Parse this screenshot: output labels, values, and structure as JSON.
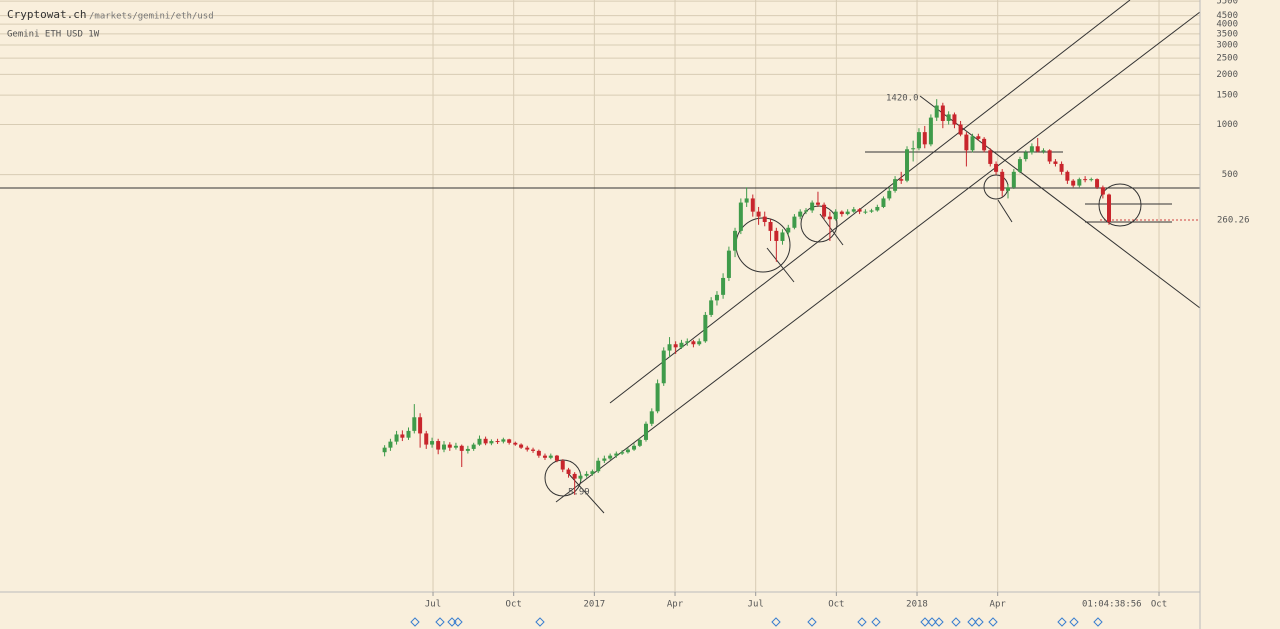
{
  "header": {
    "site": "Cryptowat.ch",
    "path": "/markets/gemini/eth/usd",
    "market": "Gemini ETH USD 1W"
  },
  "chart_data": {
    "type": "candlestick",
    "log_y": true,
    "grid": true,
    "up_color": "#3f9b4a",
    "down_color": "#c8252c",
    "xlim": [
      2015.158,
      2018.877
    ],
    "ylim": [
      1.565,
      5586
    ],
    "xticks": [
      {
        "value": 2016.5,
        "label": "Jul"
      },
      {
        "value": 2016.75,
        "label": "Oct"
      },
      {
        "value": 2017.0,
        "label": "2017"
      },
      {
        "value": 2017.25,
        "label": "Apr"
      },
      {
        "value": 2017.5,
        "label": "Jul"
      },
      {
        "value": 2017.75,
        "label": "Oct"
      },
      {
        "value": 2018.0,
        "label": "2018"
      },
      {
        "value": 2018.25,
        "label": "Apr"
      },
      {
        "value": 2018.75,
        "label": "Oct"
      }
    ],
    "yticks": [
      500,
      1000,
      1500,
      2000,
      2500,
      3000,
      3500,
      4000,
      4500,
      5500
    ],
    "countdown": "01:04:38:56",
    "annotations": [
      {
        "text": "1420.0"
      },
      {
        "text": "5.99"
      }
    ],
    "x": [
      2016.35,
      2016.368,
      2016.387,
      2016.405,
      2016.424,
      2016.442,
      2016.46,
      2016.479,
      2016.497,
      2016.516,
      2016.534,
      2016.552,
      2016.571,
      2016.589,
      2016.608,
      2016.626,
      2016.644,
      2016.663,
      2016.681,
      2016.7,
      2016.718,
      2016.736,
      2016.755,
      2016.773,
      2016.792,
      2016.81,
      2016.828,
      2016.847,
      2016.865,
      2016.884,
      2016.902,
      2016.92,
      2016.939,
      2016.957,
      2016.976,
      2016.994,
      2017.012,
      2017.031,
      2017.049,
      2017.068,
      2017.086,
      2017.104,
      2017.123,
      2017.141,
      2017.16,
      2017.178,
      2017.196,
      2017.215,
      2017.233,
      2017.252,
      2017.27,
      2017.288,
      2017.307,
      2017.325,
      2017.344,
      2017.362,
      2017.38,
      2017.399,
      2017.417,
      2017.436,
      2017.454,
      2017.472,
      2017.491,
      2017.509,
      2017.528,
      2017.546,
      2017.564,
      2017.583,
      2017.601,
      2017.62,
      2017.638,
      2017.656,
      2017.675,
      2017.693,
      2017.712,
      2017.73,
      2017.748,
      2017.767,
      2017.785,
      2017.804,
      2017.822,
      2017.84,
      2017.859,
      2017.877,
      2017.896,
      2017.914,
      2017.932,
      2017.951,
      2017.969,
      2017.988,
      2018.006,
      2018.024,
      2018.043,
      2018.061,
      2018.08,
      2018.098,
      2018.116,
      2018.135,
      2018.153,
      2018.172,
      2018.19,
      2018.208,
      2018.227,
      2018.245,
      2018.264,
      2018.282,
      2018.3,
      2018.319,
      2018.337,
      2018.356,
      2018.374,
      2018.392,
      2018.411,
      2018.429,
      2018.448,
      2018.466,
      2018.484,
      2018.503,
      2018.521,
      2018.54,
      2018.558,
      2018.576,
      2018.595
    ],
    "candles": [
      [
        10.8,
        11.9,
        10.2,
        11.5
      ],
      [
        11.5,
        13.0,
        11.0,
        12.5
      ],
      [
        12.5,
        14.5,
        12.0,
        13.8
      ],
      [
        13.8,
        14.6,
        12.6,
        13.2
      ],
      [
        13.2,
        15.2,
        12.8,
        14.5
      ],
      [
        14.5,
        21.0,
        14.0,
        17.5
      ],
      [
        17.5,
        18.5,
        11.5,
        14.0
      ],
      [
        14.0,
        14.5,
        11.3,
        12.0
      ],
      [
        12.0,
        13.2,
        11.5,
        12.6
      ],
      [
        12.6,
        13.0,
        10.5,
        11.2
      ],
      [
        11.2,
        12.6,
        10.8,
        12.0
      ],
      [
        12.0,
        12.4,
        11.0,
        11.5
      ],
      [
        11.5,
        12.3,
        11.2,
        11.8
      ],
      [
        11.8,
        12.0,
        8.8,
        11.0
      ],
      [
        11.0,
        11.8,
        10.6,
        11.3
      ],
      [
        11.3,
        12.3,
        11.0,
        12.0
      ],
      [
        12.0,
        13.6,
        11.8,
        13.0
      ],
      [
        13.0,
        13.4,
        11.9,
        12.2
      ],
      [
        12.2,
        12.9,
        11.9,
        12.6
      ],
      [
        12.6,
        13.0,
        12.1,
        12.5
      ],
      [
        12.5,
        13.2,
        12.2,
        12.9
      ],
      [
        12.9,
        13.0,
        12.0,
        12.3
      ],
      [
        12.3,
        12.5,
        11.8,
        12.0
      ],
      [
        12.0,
        12.2,
        11.3,
        11.5
      ],
      [
        11.5,
        11.8,
        10.9,
        11.2
      ],
      [
        11.2,
        11.5,
        10.7,
        11.0
      ],
      [
        11.0,
        11.2,
        10.0,
        10.3
      ],
      [
        10.3,
        10.6,
        9.7,
        10.0
      ],
      [
        10.0,
        10.6,
        9.8,
        10.3
      ],
      [
        10.3,
        10.4,
        9.4,
        9.6
      ],
      [
        9.6,
        9.8,
        8.2,
        8.5
      ],
      [
        8.5,
        8.7,
        7.6,
        8.0
      ],
      [
        8.0,
        8.2,
        5.99,
        7.5
      ],
      [
        7.5,
        8.1,
        7.2,
        7.8
      ],
      [
        7.8,
        8.3,
        7.6,
        8.0
      ],
      [
        8.0,
        8.5,
        7.8,
        8.3
      ],
      [
        8.3,
        10.0,
        8.1,
        9.6
      ],
      [
        9.6,
        10.3,
        9.3,
        9.9
      ],
      [
        9.9,
        10.6,
        9.7,
        10.3
      ],
      [
        10.3,
        10.9,
        10.0,
        10.6
      ],
      [
        10.6,
        11.1,
        10.4,
        10.8
      ],
      [
        10.8,
        11.5,
        10.6,
        11.2
      ],
      [
        11.2,
        12.2,
        11.0,
        11.8
      ],
      [
        11.8,
        13.2,
        11.6,
        12.8
      ],
      [
        12.8,
        16.5,
        12.5,
        16.0
      ],
      [
        16.0,
        19.8,
        15.5,
        19.0
      ],
      [
        19.0,
        29.5,
        18.5,
        28.0
      ],
      [
        28.0,
        46.0,
        27.0,
        44.0
      ],
      [
        44.0,
        53.0,
        40.0,
        48.0
      ],
      [
        48.0,
        50.0,
        42.0,
        46.0
      ],
      [
        46.0,
        51.0,
        45.0,
        49.0
      ],
      [
        49.0,
        52.0,
        47.0,
        50.0
      ],
      [
        50.0,
        51.0,
        46.0,
        48.0
      ],
      [
        48.0,
        52.0,
        47.0,
        50.0
      ],
      [
        50.0,
        75.0,
        49.0,
        72.0
      ],
      [
        72.0,
        92.0,
        70.0,
        88.0
      ],
      [
        88.0,
        100.0,
        82.0,
        95.0
      ],
      [
        95.0,
        128.0,
        90.0,
        120.0
      ],
      [
        120.0,
        185.0,
        115.0,
        175.0
      ],
      [
        175.0,
        240.0,
        160.0,
        230.0
      ],
      [
        230.0,
        360.0,
        220.0,
        340.0
      ],
      [
        340.0,
        420.0,
        320.0,
        360.0
      ],
      [
        360.0,
        380.0,
        280.0,
        300.0
      ],
      [
        300.0,
        320.0,
        250.0,
        280.0
      ],
      [
        280.0,
        300.0,
        245.0,
        260.0
      ],
      [
        260.0,
        270.0,
        200.0,
        230.0
      ],
      [
        230.0,
        240.0,
        150.0,
        200.0
      ],
      [
        200.0,
        235.0,
        190.0,
        225.0
      ],
      [
        225.0,
        250.0,
        215.0,
        240.0
      ],
      [
        240.0,
        290.0,
        235.0,
        280.0
      ],
      [
        280.0,
        310.0,
        270.0,
        300.0
      ],
      [
        300.0,
        315.0,
        290.0,
        305.0
      ],
      [
        305.0,
        350.0,
        295.0,
        340.0
      ],
      [
        340.0,
        395.0,
        320.0,
        330.0
      ],
      [
        330.0,
        340.0,
        270.0,
        280.0
      ],
      [
        280.0,
        300.0,
        200.0,
        270.0
      ],
      [
        270.0,
        310.0,
        265.0,
        300.0
      ],
      [
        300.0,
        305.0,
        280.0,
        290.0
      ],
      [
        290.0,
        310.0,
        285.0,
        300.0
      ],
      [
        300.0,
        320.0,
        295.0,
        310.0
      ],
      [
        310.0,
        315.0,
        290.0,
        300.0
      ],
      [
        300.0,
        310.0,
        290.0,
        300.0
      ],
      [
        300.0,
        312.0,
        295.0,
        305.0
      ],
      [
        305.0,
        330.0,
        300.0,
        320.0
      ],
      [
        320.0,
        370.0,
        315.0,
        360.0
      ],
      [
        360.0,
        420.0,
        350.0,
        400.0
      ],
      [
        400.0,
        490.0,
        390.0,
        470.0
      ],
      [
        470.0,
        520.0,
        440.0,
        460.0
      ],
      [
        460.0,
        740.0,
        450.0,
        710.0
      ],
      [
        710.0,
        800.0,
        600.0,
        720.0
      ],
      [
        720.0,
        950.0,
        700.0,
        900.0
      ],
      [
        900.0,
        980.0,
        720.0,
        760.0
      ],
      [
        760.0,
        1150.0,
        740.0,
        1100.0
      ],
      [
        1100.0,
        1420.0,
        1050.0,
        1300.0
      ],
      [
        1300.0,
        1350.0,
        950.0,
        1050.0
      ],
      [
        1050.0,
        1200.0,
        1000.0,
        1150.0
      ],
      [
        1150.0,
        1180.0,
        950.0,
        1000.0
      ],
      [
        1000.0,
        1050.0,
        850.0,
        870.0
      ],
      [
        870.0,
        900.0,
        560.0,
        700.0
      ],
      [
        700.0,
        880.0,
        680.0,
        850.0
      ],
      [
        850.0,
        880.0,
        800.0,
        820.0
      ],
      [
        820.0,
        840.0,
        680.0,
        700.0
      ],
      [
        700.0,
        720.0,
        560.0,
        580.0
      ],
      [
        580.0,
        600.0,
        500.0,
        520.0
      ],
      [
        520.0,
        540.0,
        370.0,
        400.0
      ],
      [
        400.0,
        440.0,
        360.0,
        420.0
      ],
      [
        420.0,
        540.0,
        410.0,
        520.0
      ],
      [
        520.0,
        640.0,
        510.0,
        620.0
      ],
      [
        620.0,
        700.0,
        600.0,
        680.0
      ],
      [
        680.0,
        770.0,
        660.0,
        740.0
      ],
      [
        740.0,
        830.0,
        680.0,
        690.0
      ],
      [
        690.0,
        720.0,
        670.0,
        700.0
      ],
      [
        700.0,
        710.0,
        580.0,
        600.0
      ],
      [
        600.0,
        620.0,
        560.0,
        580.0
      ],
      [
        580.0,
        600.0,
        500.0,
        520.0
      ],
      [
        520.0,
        530.0,
        440.0,
        460.0
      ],
      [
        460.0,
        470.0,
        420.0,
        430.0
      ],
      [
        430.0,
        480.0,
        420.0,
        470.0
      ],
      [
        470.0,
        490.0,
        450.0,
        465.0
      ],
      [
        465.0,
        480.0,
        455.0,
        470.0
      ],
      [
        470.0,
        475.0,
        410.0,
        420.0
      ],
      [
        420.0,
        430.0,
        360.0,
        380.0
      ],
      [
        380.0,
        385.0,
        250.0,
        260.26
      ]
    ]
  }
}
